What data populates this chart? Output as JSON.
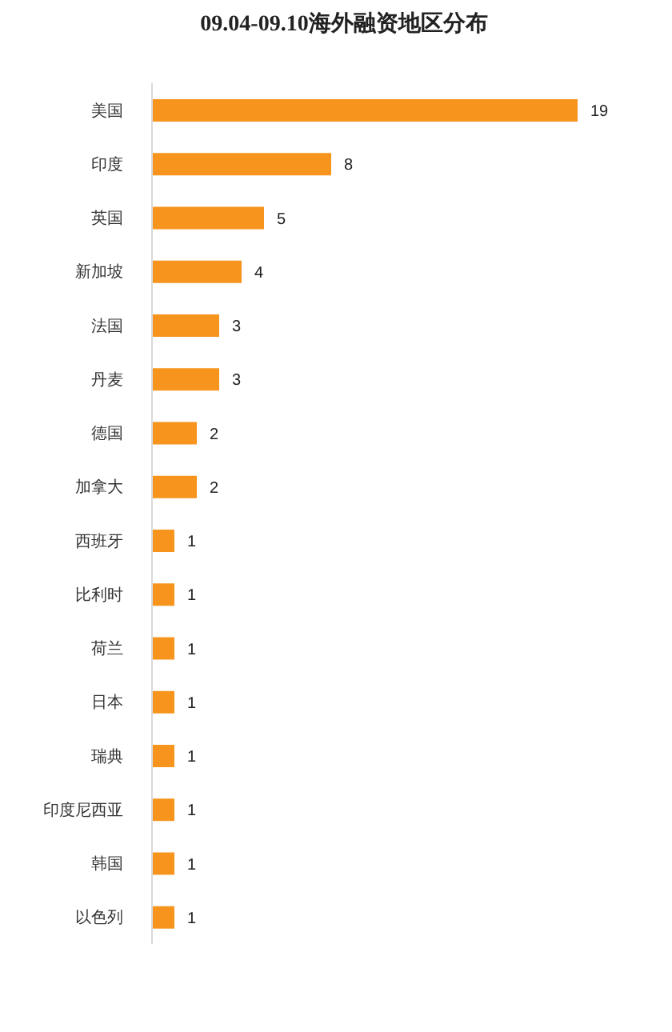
{
  "chart_data": {
    "type": "bar",
    "title": "09.04-09.10海外融资地区分布",
    "categories": [
      "美国",
      "印度",
      "英国",
      "新加坡",
      "法国",
      "丹麦",
      "德国",
      "加拿大",
      "西班牙",
      "比利时",
      "荷兰",
      "日本",
      "瑞典",
      "印度尼西亚",
      "韩国",
      "以色列"
    ],
    "values": [
      19,
      8,
      5,
      4,
      3,
      3,
      2,
      2,
      1,
      1,
      1,
      1,
      1,
      1,
      1,
      1
    ],
    "color": "#f7941d",
    "orientation": "horizontal",
    "data_labels": true
  }
}
